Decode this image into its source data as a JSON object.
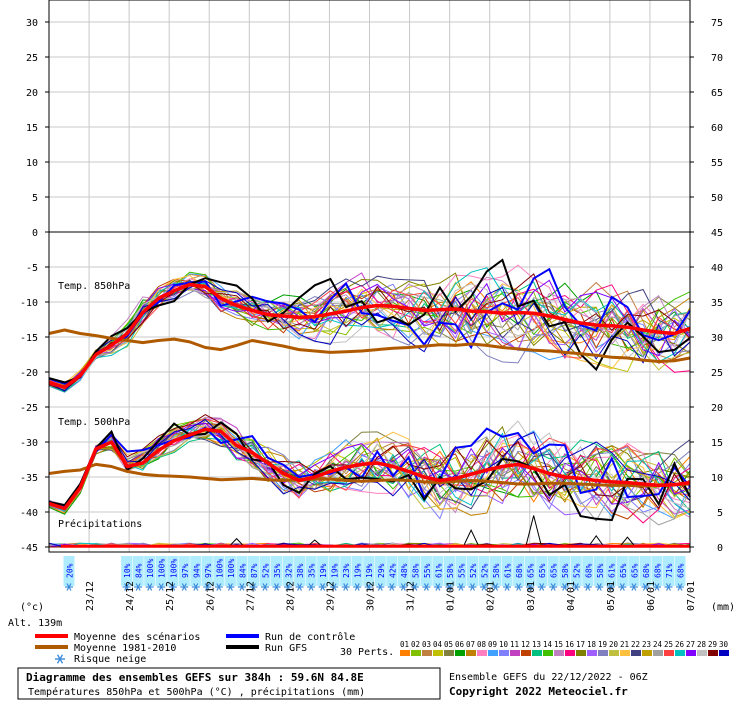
{
  "chart_data": {
    "type": "line",
    "x_dates": [
      "23/12",
      "24/12",
      "25/12",
      "26/12",
      "27/12",
      "28/12",
      "29/12",
      "30/12",
      "31/12",
      "01/01",
      "02/01",
      "03/01",
      "04/01",
      "05/01",
      "06/01",
      "07/01"
    ],
    "left_ticks": [
      30,
      25,
      20,
      15,
      10,
      5,
      0,
      -5,
      -10,
      -15,
      -20,
      -25,
      -30,
      -35,
      -40,
      -45
    ],
    "right_ticks": [
      75,
      70,
      65,
      60,
      55,
      50,
      45,
      40,
      35,
      30,
      25,
      20,
      15,
      10,
      5,
      0
    ],
    "left_unit": "(°c)",
    "right_unit": "(mm)",
    "altitude": "Alt. 139m",
    "panel_labels": {
      "t850": "Temp. 850hPa",
      "t500": "Temp. 500hPa",
      "precip": "Précipitations"
    },
    "t850_mean": [
      -21.5,
      -22.2,
      -20.5,
      -17.5,
      -16.2,
      -14.5,
      -11.5,
      -9.5,
      -8.4,
      -7.5,
      -7.8,
      -9.5,
      -10.5,
      -11.2,
      -11.8,
      -12.0,
      -12.2,
      -12.1,
      -11.7,
      -11.3,
      -10.8,
      -10.5,
      -10.6,
      -10.9,
      -11.2,
      -11.1,
      -11.0,
      -11.3,
      -11.4,
      -11.6,
      -11.5,
      -11.6,
      -12.0,
      -12.5,
      -13.0,
      -13.3,
      -13.4,
      -13.6,
      -14.0,
      -14.3,
      -14.5,
      -13.8
    ],
    "t850_climo": [
      -14.5,
      -14.0,
      -14.5,
      -14.8,
      -15.2,
      -15.5,
      -15.8,
      -15.5,
      -15.3,
      -15.7,
      -16.5,
      -16.8,
      -16.2,
      -15.5,
      -15.9,
      -16.3,
      -16.8,
      -17.0,
      -17.2,
      -17.1,
      -17.0,
      -16.8,
      -16.6,
      -16.5,
      -16.3,
      -16.1,
      -16.2,
      -16.0,
      -16.2,
      -16.5,
      -16.7,
      -16.9,
      -17.0,
      -17.2,
      -17.4,
      -17.6,
      -17.9,
      -18.0,
      -18.3,
      -18.5,
      -18.4,
      -18.0
    ],
    "t500_mean": [
      -38.8,
      -39.5,
      -36.5,
      -31.0,
      -30.0,
      -33.5,
      -33.0,
      -31.2,
      -29.8,
      -29.0,
      -28.2,
      -28.5,
      -30.5,
      -31.5,
      -33.0,
      -34.5,
      -35.5,
      -35.0,
      -34.2,
      -33.6,
      -33.2,
      -33.0,
      -33.5,
      -34.2,
      -35.0,
      -35.5,
      -35.2,
      -34.6,
      -34.0,
      -33.5,
      -33.2,
      -33.8,
      -34.5,
      -35.0,
      -35.2,
      -35.5,
      -35.7,
      -35.8,
      -36.0,
      -36.2,
      -36.1,
      -35.8
    ],
    "t500_climo": [
      -34.5,
      -34.2,
      -34.0,
      -33.2,
      -33.5,
      -34.2,
      -34.6,
      -34.8,
      -34.9,
      -35.0,
      -35.2,
      -35.4,
      -35.3,
      -35.2,
      -35.4,
      -35.5,
      -35.4,
      -35.3,
      -35.3,
      -35.5,
      -35.6,
      -35.5,
      -35.4,
      -35.5,
      -35.7,
      -35.8,
      -35.6,
      -35.5,
      -35.6,
      -35.8,
      -36.0,
      -36.0,
      -35.9,
      -35.9,
      -36.0,
      -36.1,
      -36.2,
      -36.2,
      -36.3,
      -36.2,
      -36.1,
      -36.0
    ],
    "snow_risk": [
      "20%",
      "",
      "",
      "",
      "",
      "10%",
      "84%",
      "100%",
      "100%",
      "100%",
      "97%",
      "94%",
      "97%",
      "100%",
      "100%",
      "84%",
      "87%",
      "52%",
      "35%",
      "32%",
      "38%",
      "35%",
      "19%",
      "19%",
      "23%",
      "19%",
      "19%",
      "29%",
      "42%",
      "48%",
      "58%",
      "55%",
      "61%",
      "58%",
      "55%",
      "52%",
      "52%",
      "58%",
      "61%",
      "68%",
      "65%",
      "65%",
      "65%",
      "58%",
      "52%",
      "68%",
      "58%",
      "61%",
      "65%",
      "65%",
      "68%",
      "68%",
      "71%",
      "68%"
    ],
    "precip_spikes": [
      [
        41,
        4.5
      ],
      [
        35,
        2.4
      ],
      [
        49,
        1.4
      ],
      [
        16,
        1.2
      ],
      [
        23,
        1.0
      ],
      [
        46,
        1.6
      ]
    ]
  },
  "legend": {
    "mean": "Moyenne des scénarios",
    "climo": "Moyenne 1981-2010",
    "snow": "Risque neige",
    "control": "Run de contrôle",
    "gfs": "Run GFS",
    "perts": "30 Perts."
  },
  "colors": {
    "mean": "#ff0000",
    "climo": "#b05a00",
    "control": "#0000ff",
    "gfs": "#000000",
    "snow_bg": "#b0ecff",
    "snow_text": "#0000ff"
  },
  "pert_labels": [
    "01",
    "02",
    "03",
    "04",
    "05",
    "06",
    "07",
    "08",
    "09",
    "10",
    "11",
    "12",
    "13",
    "14",
    "15",
    "16",
    "17",
    "18",
    "19",
    "20",
    "21",
    "22",
    "23",
    "24",
    "25",
    "26",
    "27",
    "28",
    "29",
    "30"
  ],
  "pert_colors": [
    "#ff8000",
    "#80c000",
    "#c08040",
    "#c0c000",
    "#808040",
    "#00a000",
    "#c08000",
    "#ff80c0",
    "#40a0ff",
    "#8080ff",
    "#c040c0",
    "#c04000",
    "#00c080",
    "#40c000",
    "#c080c0",
    "#ff0080",
    "#808000",
    "#a060ff",
    "#8080c0",
    "#c0c040",
    "#ffc040",
    "#404080",
    "#c0a000",
    "#a0a0a0",
    "#ff4040",
    "#00c0c0",
    "#8000ff",
    "#c0c0c0",
    "#800000",
    "#0000c0"
  ],
  "footer": {
    "title": "Diagramme des ensembles GEFS sur 384h : 59.6N 84.8E",
    "subtitle": "Températures 850hPa et 500hPa (°C) , précipitations (mm)",
    "run": "Ensemble GEFS du 22/12/2022 - 06Z",
    "copyright": "Copyright 2022 Meteociel.fr"
  }
}
